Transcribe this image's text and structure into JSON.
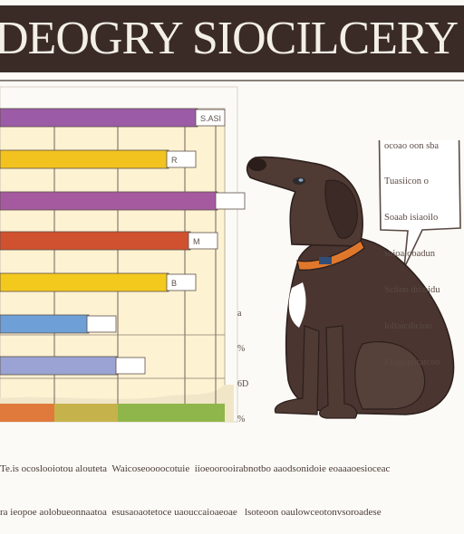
{
  "header": {
    "title": "DEOGRY SIOCILCERY"
  },
  "chart_data": {
    "type": "bar",
    "orientation": "horizontal",
    "title": "DEOGRY SIOCILCERY",
    "xlabel": "",
    "ylabel": "",
    "grid": true,
    "categories": [
      "",
      "",
      "",
      "",
      "",
      "",
      ""
    ],
    "values": [
      218,
      186,
      240,
      210,
      186,
      98,
      130
    ],
    "value_labels": [
      "S.ASI",
      "R",
      "",
      "M",
      "B",
      "",
      ""
    ],
    "bar_colors": [
      "#9b5ba6",
      "#f2c21f",
      "#a55aa0",
      "#d0512f",
      "#f3c91e",
      "#6e9fd6",
      "#9aa3d3"
    ],
    "bottom_band_colors": [
      "#e07a3c",
      "#c6b24a",
      "#8fb64a"
    ]
  },
  "speech_bubble": {
    "lines": [
      "ocoao oon sba",
      "Tuasiicon o",
      "Soaab isiaoilo",
      "soioalooadun",
      "Sciloo drcoidu",
      "loltaicdicioo",
      "Eloguporatceo"
    ]
  },
  "side_note": {
    "lines": [
      "a",
      "%",
      "6D",
      "%"
    ]
  },
  "caption": {
    "lines": [
      "Te.is ocoslooiotou alouteta  Waicoseoooocotuie  iioeoorooirabnotbo aaodsonidoie eoaaaoesioceac",
      "ra ieopoe aolobueonnaatoa  esusaoaotetoce uaouccaioaeoae   lsoteoon oaulowceotonvsoroadese"
    ]
  },
  "dog": {
    "collar_color": "#e0782c",
    "tag_color": "#2f4f7a"
  }
}
